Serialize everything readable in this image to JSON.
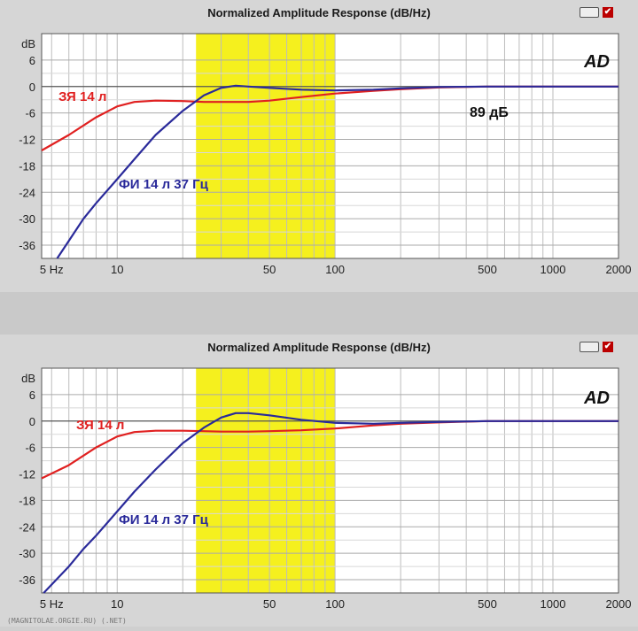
{
  "chart_data": [
    {
      "type": "line",
      "title": "Normalized Amplitude Response (dB/Hz)",
      "x_scale": "log",
      "xlim": [
        4.5,
        2000
      ],
      "ylim": [
        -39,
        12
      ],
      "x_ticks": [
        5,
        10,
        50,
        100,
        500,
        1000,
        2000
      ],
      "x_tick_labels": [
        "5 Hz",
        "10",
        "50",
        "100",
        "500",
        "1000",
        "2000"
      ],
      "y_ticks": [
        6,
        0,
        -6,
        -12,
        -18,
        -24,
        -30,
        -36
      ],
      "y_tick_labels": [
        "6",
        "0",
        "-6",
        "-12",
        "-18",
        "-24",
        "-30",
        "-36"
      ],
      "y_unit": "dB",
      "grid": true,
      "highlight_band": {
        "x": [
          23,
          100
        ],
        "color": "#f5f01e"
      },
      "badge": "AD",
      "annotation": "89 дБ",
      "series": [
        {
          "name": "ЗЯ 14 л",
          "color": "#e02020",
          "x": [
            4.5,
            6,
            8,
            10,
            12,
            15,
            20,
            25,
            30,
            40,
            50,
            70,
            100,
            150,
            200,
            300,
            500,
            1000,
            2000
          ],
          "y": [
            -14.5,
            -11,
            -7,
            -4.5,
            -3.5,
            -3.2,
            -3.3,
            -3.5,
            -3.5,
            -3.5,
            -3.2,
            -2.4,
            -1.6,
            -1,
            -0.6,
            -0.2,
            0,
            0,
            0
          ]
        },
        {
          "name": "ФИ 14 л 37 Гц",
          "color": "#2a2a9a",
          "x": [
            5.3,
            6,
            7,
            8,
            10,
            12,
            15,
            20,
            25,
            30,
            35,
            40,
            50,
            70,
            100,
            150,
            200,
            300,
            500,
            1000,
            2000
          ],
          "y": [
            -39,
            -35,
            -30,
            -26.5,
            -21,
            -16.5,
            -11,
            -5.5,
            -2,
            -0.3,
            0.2,
            0,
            -0.3,
            -0.7,
            -0.9,
            -0.7,
            -0.4,
            -0.1,
            0,
            0,
            0
          ]
        }
      ]
    },
    {
      "type": "line",
      "title": "Normalized Amplitude Response (dB/Hz)",
      "x_scale": "log",
      "xlim": [
        4.5,
        2000
      ],
      "ylim": [
        -39,
        12
      ],
      "x_ticks": [
        5,
        10,
        50,
        100,
        500,
        1000,
        2000
      ],
      "x_tick_labels": [
        "5 Hz",
        "10",
        "50",
        "100",
        "500",
        "1000",
        "2000"
      ],
      "y_ticks": [
        6,
        0,
        -6,
        -12,
        -18,
        -24,
        -30,
        -36
      ],
      "y_tick_labels": [
        "6",
        "0",
        "-6",
        "-12",
        "-18",
        "-24",
        "-30",
        "-36"
      ],
      "y_unit": "dB",
      "grid": true,
      "highlight_band": {
        "x": [
          23,
          100
        ],
        "color": "#f5f01e"
      },
      "badge": "AD",
      "annotation": "",
      "series": [
        {
          "name": "ЗЯ 14 л",
          "color": "#e02020",
          "x": [
            4.5,
            6,
            8,
            10,
            12,
            15,
            20,
            25,
            30,
            40,
            50,
            70,
            100,
            150,
            200,
            300,
            500,
            1000,
            2000
          ],
          "y": [
            -13,
            -10,
            -6,
            -3.5,
            -2.5,
            -2.2,
            -2.2,
            -2.3,
            -2.4,
            -2.4,
            -2.3,
            -2.1,
            -1.7,
            -1,
            -0.6,
            -0.3,
            0,
            0,
            0
          ]
        },
        {
          "name": "ФИ 14 л 37 Гц",
          "color": "#2a2a9a",
          "x": [
            4.6,
            6,
            7,
            8,
            10,
            12,
            15,
            20,
            25,
            30,
            35,
            40,
            50,
            70,
            100,
            150,
            200,
            300,
            500,
            1000,
            2000
          ],
          "y": [
            -39,
            -33,
            -29,
            -26,
            -20.5,
            -16,
            -11,
            -5,
            -1.5,
            0.8,
            1.8,
            1.8,
            1.3,
            0.3,
            -0.4,
            -0.6,
            -0.4,
            -0.2,
            0,
            0,
            0
          ]
        }
      ]
    }
  ],
  "footer": "(MAGNITOLAE.ORGIE.RU) (.NET)"
}
